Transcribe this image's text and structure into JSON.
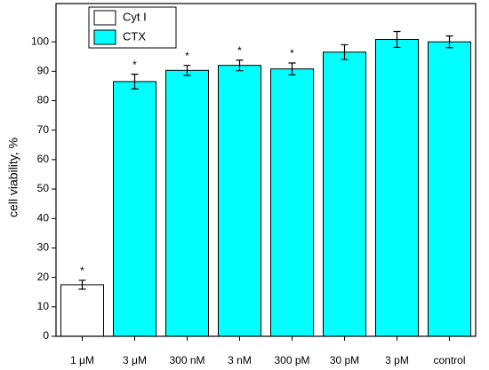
{
  "chart_data": {
    "type": "bar",
    "y_label": "cell viability, %",
    "categories": [
      "1 μM",
      "3 μM",
      "300 nM",
      "3 nM",
      "300 pM",
      "30 pM",
      "3 pM",
      "control"
    ],
    "series": [
      {
        "name": "Cyt I",
        "color": "#ffffff",
        "values": [
          17.5,
          null,
          null,
          null,
          null,
          null,
          null,
          null
        ],
        "errors": [
          1.5,
          null,
          null,
          null,
          null,
          null,
          null,
          null
        ]
      },
      {
        "name": "CTX",
        "color": "#00ffff",
        "values": [
          null,
          86.5,
          90.3,
          92,
          90.8,
          96.5,
          100.8,
          100
        ],
        "errors": [
          null,
          2.5,
          1.7,
          1.8,
          2,
          2.5,
          2.7,
          2
        ]
      }
    ],
    "significance": [
      "*",
      "*",
      "*",
      "*",
      "*",
      null,
      null,
      null
    ],
    "ylim": [
      0,
      113
    ],
    "yticks": [
      0,
      10,
      20,
      30,
      40,
      50,
      60,
      70,
      80,
      90,
      100
    ],
    "legend": "upper left"
  }
}
